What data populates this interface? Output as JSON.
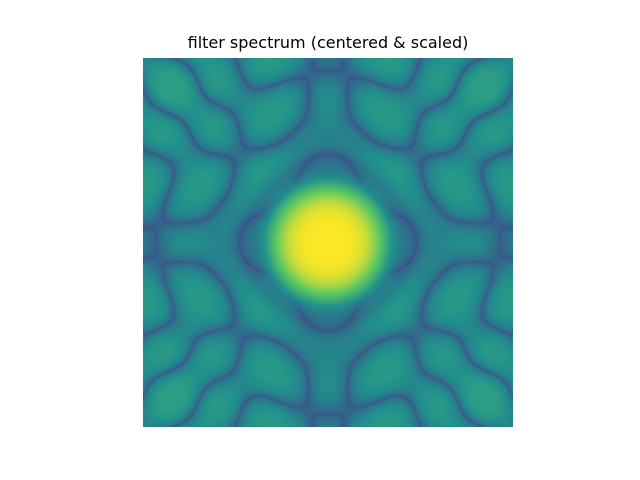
{
  "figure": {
    "background": "#ffffff"
  },
  "chart_data": {
    "type": "heatmap",
    "title": "filter spectrum (centered & scaled)",
    "xlabel": "",
    "ylabel": "",
    "axes_visible": false,
    "grid": false,
    "colormap": "viridis",
    "colormap_stops": [
      "#440154",
      "#3b528b",
      "#21918c",
      "#5ec962",
      "#fde725"
    ],
    "description_of_values": "magnitude spectrum, centered, normalized to [0,1]",
    "center_peak_value": 1.0,
    "background_level": 0.55,
    "lobe_pattern": "ring-like sidelobes with dark nulls surrounding a bright central disk"
  }
}
